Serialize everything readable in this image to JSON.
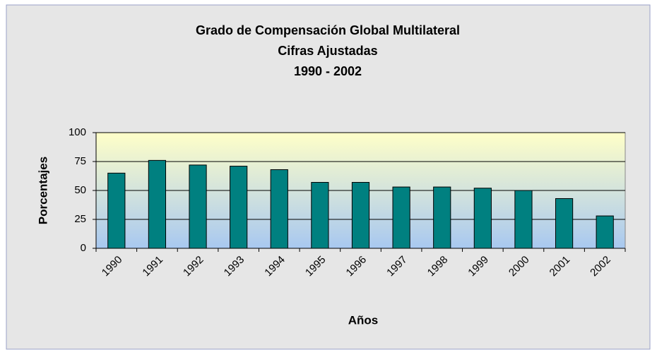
{
  "chart_data": {
    "type": "bar",
    "title": [
      "Grado de Compensación Global Multilateral",
      "Cifras Ajustadas",
      "1990 - 2002"
    ],
    "x_label": "Años",
    "y_label": "Porcentajes",
    "categories": [
      "1990",
      "1991",
      "1992",
      "1993",
      "1994",
      "1995",
      "1996",
      "1997",
      "1998",
      "1999",
      "2000",
      "2001",
      "2002"
    ],
    "values": [
      65,
      76,
      72,
      71,
      68,
      57,
      57,
      53,
      53,
      52,
      50,
      43,
      28
    ],
    "color": "#008080",
    "ylim": [
      0,
      100
    ],
    "yticks": [
      0,
      25,
      50,
      75,
      100
    ],
    "grid": true
  }
}
